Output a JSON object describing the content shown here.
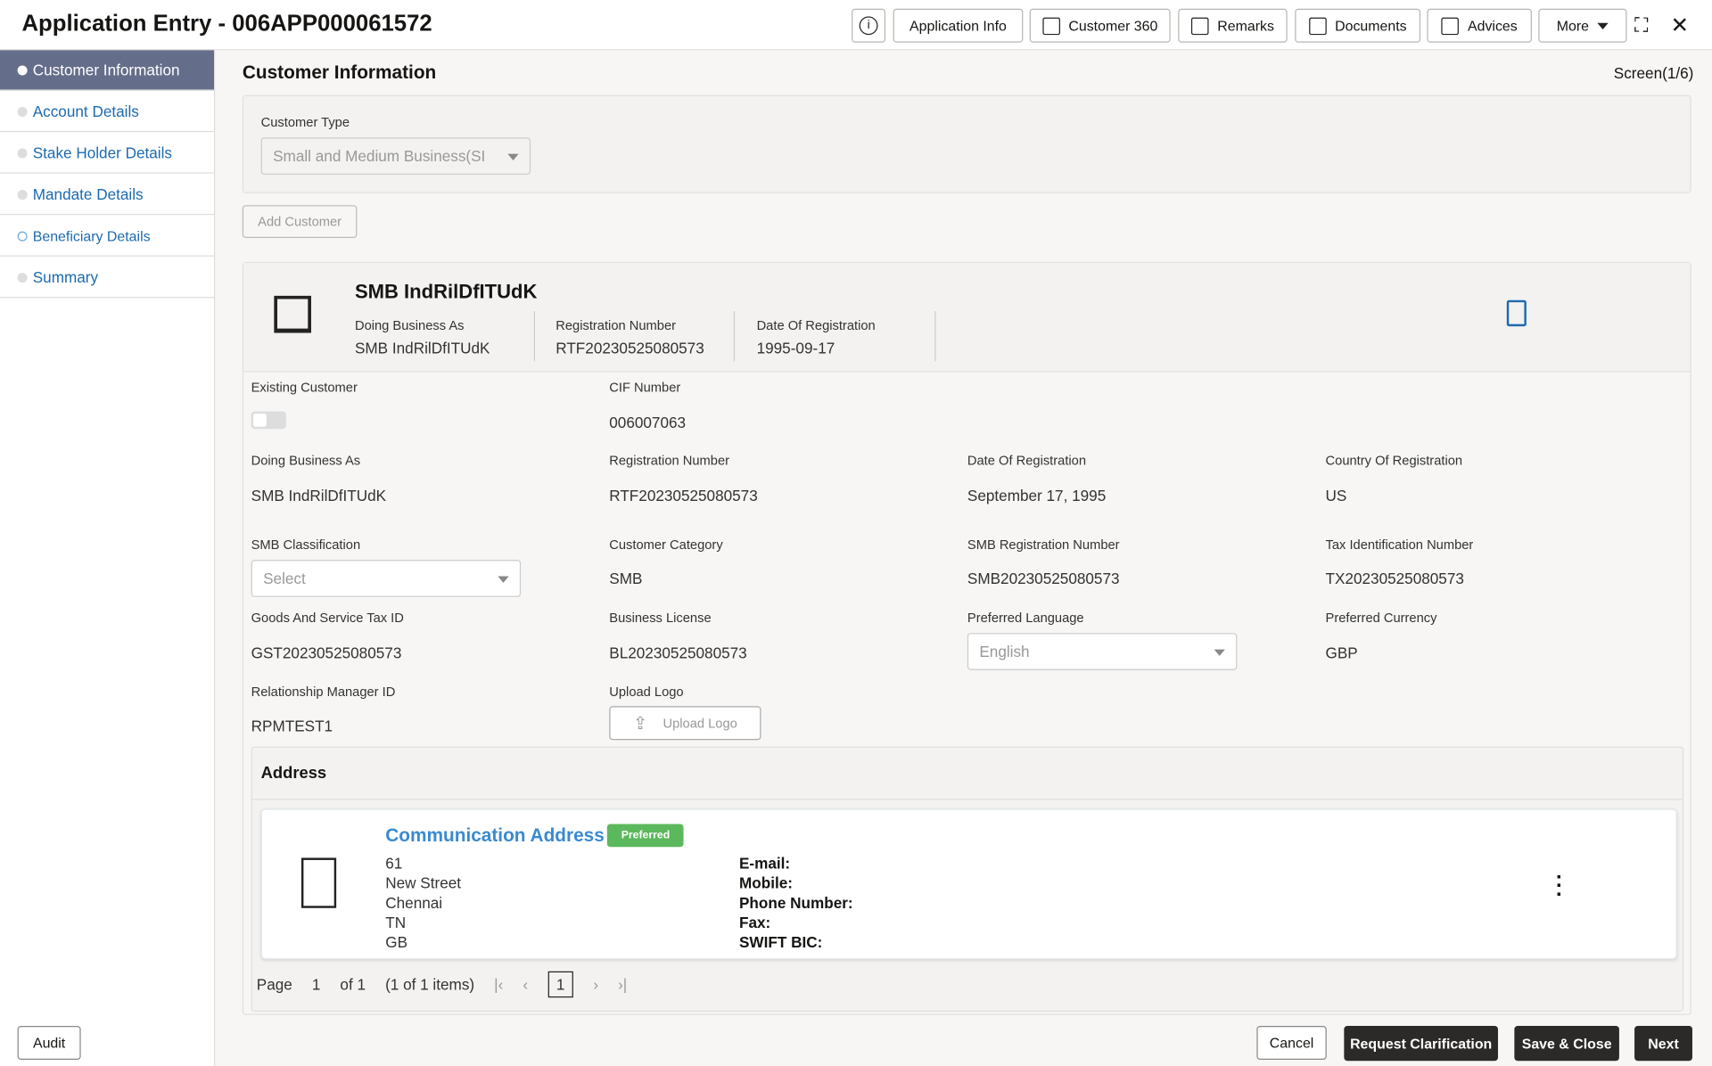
{
  "header": {
    "title": "Application Entry - 006APP000061572",
    "buttons": [
      "Application Info",
      "Customer 360",
      "Remarks",
      "Documents",
      "Advices",
      "More"
    ]
  },
  "sidebar": {
    "items": [
      "Customer Information",
      "Account Details",
      "Stake Holder Details",
      "Mandate Details",
      "Beneficiary Details",
      "Summary"
    ],
    "active": "Customer Information"
  },
  "main": {
    "title": "Customer Information",
    "screen": "Screen(1/6)",
    "customer_type": {
      "label": "Customer Type",
      "value": "Small and Medium Business(SI"
    },
    "add_customer": "Add Customer",
    "card": {
      "name": "SMB IndRilDfITUdK",
      "fields": [
        {
          "label": "Doing Business As",
          "value": "SMB IndRilDfITUdK"
        },
        {
          "label": "Registration Number",
          "value": "RTF20230525080573"
        },
        {
          "label": "Date Of Registration",
          "value": "1995-09-17"
        }
      ]
    },
    "existing_customer": {
      "label": "Existing Customer",
      "on": false
    },
    "cif": {
      "label": "CIF Number",
      "value": "006007063"
    },
    "fields": [
      {
        "label": "Doing Business As",
        "value": "SMB IndRilDfITUdK"
      },
      {
        "label": "Registration Number",
        "value": "RTF20230525080573"
      },
      {
        "label": "Date Of Registration",
        "value": "September 17, 1995"
      },
      {
        "label": "Country Of Registration",
        "value": "US"
      },
      {
        "label": "SMB Classification",
        "value": "Select"
      },
      {
        "label": "Customer Category",
        "value": "SMB"
      },
      {
        "label": "SMB Registration Number",
        "value": "SMB20230525080573"
      },
      {
        "label": "Tax Identification Number",
        "value": "TX20230525080573"
      },
      {
        "label": "Goods And Service Tax ID",
        "value": "GST20230525080573"
      },
      {
        "label": "Business License",
        "value": "BL20230525080573"
      },
      {
        "label": "Preferred Language",
        "value": "English"
      },
      {
        "label": "Preferred Currency",
        "value": "GBP"
      },
      {
        "label": "Relationship Manager ID",
        "value": "RPMTEST1"
      },
      {
        "label": "Upload Logo",
        "value": "Upload Logo"
      }
    ],
    "address": {
      "title": "Address",
      "type": "Communication Address",
      "badge": "Preferred",
      "lines": [
        "61",
        "New Street",
        "Chennai",
        "TN",
        "GB"
      ],
      "contacts": [
        "E-mail:",
        "Mobile:",
        "Phone Number:",
        "Fax:",
        "SWIFT BIC:"
      ]
    },
    "pager": {
      "page_label": "Page",
      "page": "1",
      "of": "of 1",
      "items": "(1 of 1 items)",
      "current": "1"
    }
  },
  "footer": {
    "audit": "Audit",
    "cancel": "Cancel",
    "request": "Request Clarification",
    "save": "Save & Close",
    "next": "Next"
  },
  "colors": {
    "accent": "#1c6ab0",
    "active_nav": "#646d8a",
    "badge": "#5cb85c",
    "dark_button": "#2b2a28"
  }
}
